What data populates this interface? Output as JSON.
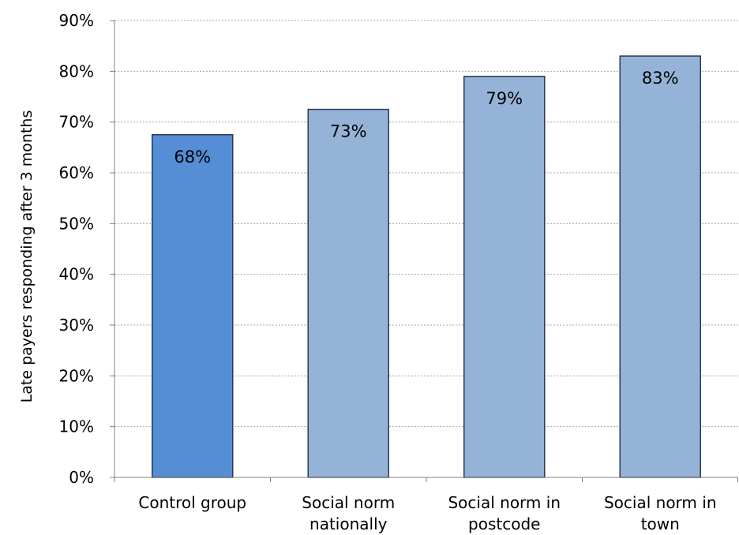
{
  "chart_data": {
    "type": "bar",
    "title": "",
    "xlabel": "",
    "ylabel": "Late payers responding after 3 months",
    "categories": [
      [
        "Control group"
      ],
      [
        "Social norm",
        "nationally"
      ],
      [
        "Social norm in",
        "postcode"
      ],
      [
        "Social norm in",
        "town"
      ]
    ],
    "values": [
      67.5,
      72.5,
      79,
      83
    ],
    "data_labels": [
      "68%",
      "73%",
      "79%",
      "83%"
    ],
    "ylim": [
      0,
      90
    ],
    "y_ticks": [
      0,
      10,
      20,
      30,
      40,
      50,
      60,
      70,
      80,
      90
    ],
    "y_tick_labels": [
      "0%",
      "10%",
      "20%",
      "30%",
      "40%",
      "50%",
      "60%",
      "70%",
      "80%",
      "90%"
    ],
    "grid": true,
    "colors": {
      "highlight_bar": "#558ed5",
      "bar": "#95b3d7",
      "bar_outline": "#2b3a52"
    },
    "highlight_index": 0
  }
}
